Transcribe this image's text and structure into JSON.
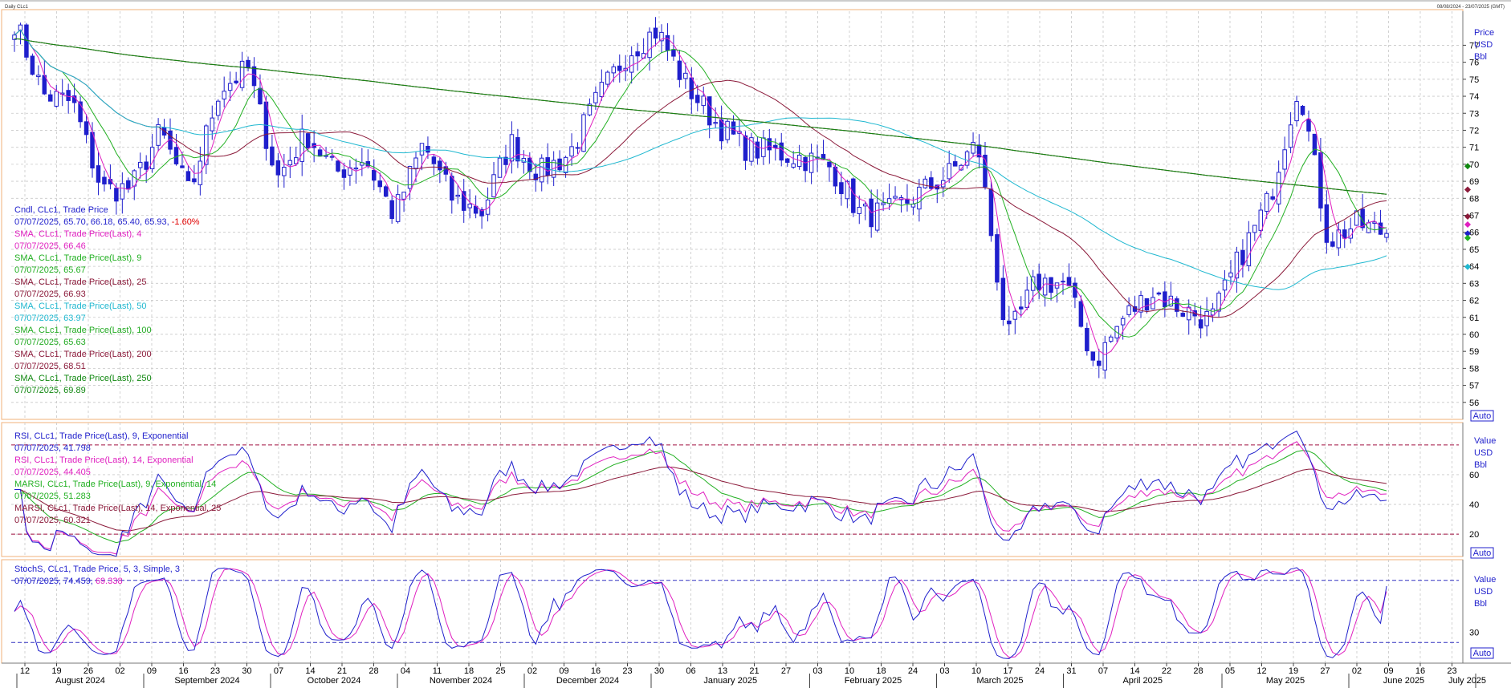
{
  "header": {
    "left_title": "Daily CLc1",
    "right_range": "08/08/2024 - 23/07/2025 (GMT)"
  },
  "legend": {
    "price": [
      {
        "name": "Cndl, CLc1, Trade Price",
        "value": "07/07/2025, 65.70, 66.18, 65.40, 65.93,",
        "change": "-1.60%",
        "color": "#1f1fcc"
      },
      {
        "name": "SMA, CLc1, Trade Price(Last), 4",
        "value": "07/07/2025, 66.46",
        "color": "#e020c0"
      },
      {
        "name": "SMA, CLc1, Trade Price(Last), 9",
        "value": "07/07/2025, 65.67",
        "color": "#22b022"
      },
      {
        "name": "SMA, CLc1, Trade Price(Last), 25",
        "value": "07/07/2025, 66.93",
        "color": "#8b1a3a"
      },
      {
        "name": "SMA, CLc1, Trade Price(Last), 50",
        "value": "07/07/2025, 63.97",
        "color": "#20b8d0"
      },
      {
        "name": "SMA, CLc1, Trade Price(Last), 100",
        "value": "07/07/2025, 65.63",
        "color": "#22aa22"
      },
      {
        "name": "SMA, CLc1, Trade Price(Last), 200",
        "value": "07/07/2025, 68.51",
        "color": "#8b1a3a"
      },
      {
        "name": "SMA, CLc1, Trade Price(Last), 250",
        "value": "07/07/2025, 69.89",
        "color": "#118811"
      }
    ],
    "rsi": [
      {
        "name": "RSI, CLc1, Trade Price(Last), 9, Exponential",
        "value": "07/07/2025, 41.798",
        "color": "#1f1fcc"
      },
      {
        "name": "RSI, CLc1, Trade Price(Last), 14, Exponential",
        "value": "07/07/2025, 44.405",
        "color": "#e020c0"
      },
      {
        "name": "MARSI, CLc1, Trade Price(Last), 9, Exponential, 14",
        "value": "07/07/2025, 51.283",
        "color": "#22b022"
      },
      {
        "name": "MARSI, CLc1, Trade Price(Last), 14, Exponential, 25",
        "value": "07/07/2025, 60.321",
        "color": "#8b1a3a"
      }
    ],
    "stoch": [
      {
        "name": "StochS, CLc1, Trade Price, 5, 3, Simple, 3",
        "value_a": "07/07/2025, 74.459,",
        "value_b": "69.338",
        "color_a": "#1f1fcc",
        "color_b": "#e020c0"
      }
    ]
  },
  "axis": {
    "price_unit": [
      "Price",
      "USD",
      "Bbl"
    ],
    "value_unit_rsi": [
      "Value",
      "USD",
      "Bbl"
    ],
    "value_unit_stoch": [
      "Value",
      "USD",
      "Bbl"
    ],
    "auto_label": "Auto",
    "price_ticks": [
      "56",
      "57",
      "58",
      "59",
      "60",
      "61",
      "62",
      "63",
      "64",
      "65",
      "66",
      "67",
      "68",
      "69",
      "70",
      "71",
      "72",
      "73",
      "74",
      "75",
      "76",
      "77"
    ],
    "rsi_ticks": [
      "20",
      "40",
      "60"
    ],
    "stoch_ticks": [
      "30"
    ],
    "x_day_ticks": [
      "12",
      "19",
      "26",
      "02",
      "09",
      "16",
      "23",
      "30",
      "07",
      "14",
      "21",
      "28",
      "04",
      "11",
      "18",
      "25",
      "02",
      "09",
      "16",
      "23",
      "30",
      "06",
      "13",
      "21",
      "27",
      "03",
      "10",
      "18",
      "24",
      "03",
      "10",
      "17",
      "24",
      "31",
      "07",
      "14",
      "22",
      "28",
      "05",
      "12",
      "19",
      "27",
      "02",
      "09",
      "16",
      "23",
      "30",
      "07",
      "14",
      "21"
    ],
    "x_month_labels": [
      "August 2024",
      "September 2024",
      "October 2024",
      "November 2024",
      "December 2024",
      "January 2025",
      "February 2025",
      "March 2025",
      "April 2025",
      "May 2025",
      "June 2025",
      "July 2025"
    ]
  },
  "colors": {
    "candle": "#1f1fcc",
    "pane_border": "#f0b27a",
    "grid": "#c8c8c8",
    "rsi_band": "#a01040",
    "stoch_band": "#3030c0"
  },
  "chart_data": [
    {
      "type": "candlestick",
      "ylim": [
        55,
        79
      ],
      "x_range": [
        "2024-08-08",
        "2025-07-23"
      ],
      "last_candle": {
        "date": "07/07/2025",
        "open": 65.7,
        "high": 66.18,
        "low": 65.4,
        "close": 65.93
      },
      "close_approx": [
        {
          "date": "2024-08-12",
          "value": 78.4
        },
        {
          "date": "2024-08-19",
          "value": 74.1
        },
        {
          "date": "2024-08-26",
          "value": 73.6
        },
        {
          "date": "2024-09-02",
          "value": 68.5
        },
        {
          "date": "2024-09-09",
          "value": 68.6
        },
        {
          "date": "2024-09-16",
          "value": 71.9
        },
        {
          "date": "2024-09-23",
          "value": 68.2
        },
        {
          "date": "2024-09-30",
          "value": 74.4
        },
        {
          "date": "2024-10-07",
          "value": 75.6
        },
        {
          "date": "2024-10-14",
          "value": 69.2
        },
        {
          "date": "2024-10-21",
          "value": 71.8
        },
        {
          "date": "2024-10-28",
          "value": 69.5
        },
        {
          "date": "2024-11-04",
          "value": 70.4
        },
        {
          "date": "2024-11-11",
          "value": 67.0
        },
        {
          "date": "2024-11-18",
          "value": 71.2
        },
        {
          "date": "2024-11-25",
          "value": 68.0
        },
        {
          "date": "2024-12-02",
          "value": 67.2
        },
        {
          "date": "2024-12-09",
          "value": 71.3
        },
        {
          "date": "2024-12-16",
          "value": 69.5
        },
        {
          "date": "2024-12-23",
          "value": 70.6
        },
        {
          "date": "2024-12-30",
          "value": 73.9
        },
        {
          "date": "2025-01-06",
          "value": 76.6
        },
        {
          "date": "2025-01-13",
          "value": 77.9
        },
        {
          "date": "2025-01-21",
          "value": 74.7
        },
        {
          "date": "2025-01-27",
          "value": 72.5
        },
        {
          "date": "2025-02-03",
          "value": 71.0
        },
        {
          "date": "2025-02-10",
          "value": 70.7
        },
        {
          "date": "2025-02-18",
          "value": 70.4
        },
        {
          "date": "2025-02-24",
          "value": 69.8
        },
        {
          "date": "2025-03-03",
          "value": 67.0
        },
        {
          "date": "2025-03-10",
          "value": 67.2
        },
        {
          "date": "2025-03-17",
          "value": 68.3
        },
        {
          "date": "2025-03-24",
          "value": 69.4
        },
        {
          "date": "2025-03-31",
          "value": 71.2
        },
        {
          "date": "2025-04-07",
          "value": 59.6
        },
        {
          "date": "2025-04-14",
          "value": 63.1
        },
        {
          "date": "2025-04-22",
          "value": 63.0
        },
        {
          "date": "2025-04-28",
          "value": 58.3
        },
        {
          "date": "2025-05-05",
          "value": 61.0
        },
        {
          "date": "2025-05-12",
          "value": 62.5
        },
        {
          "date": "2025-05-19",
          "value": 61.5
        },
        {
          "date": "2025-05-27",
          "value": 60.8
        },
        {
          "date": "2025-06-02",
          "value": 64.6
        },
        {
          "date": "2025-06-09",
          "value": 68.0
        },
        {
          "date": "2025-06-16",
          "value": 74.9
        },
        {
          "date": "2025-06-23",
          "value": 65.5
        },
        {
          "date": "2025-06-30",
          "value": 66.5
        },
        {
          "date": "2025-07-07",
          "value": 65.93
        }
      ],
      "sma_last": {
        "4": 66.46,
        "9": 65.67,
        "25": 66.93,
        "50": 63.97,
        "100": 65.63,
        "200": 68.51,
        "250": 69.89
      }
    },
    {
      "type": "line",
      "ylim": [
        5,
        95
      ],
      "bands": [
        20,
        80
      ],
      "last_values": {
        "RSI 9": 41.798,
        "RSI 14": 44.405,
        "MARSI 9,14": 51.283,
        "MARSI 14,25": 60.321
      }
    },
    {
      "type": "line",
      "ylim": [
        0,
        100
      ],
      "bands": [
        20,
        80
      ],
      "last_values": {
        "%K": 74.459,
        "%D": 69.338
      }
    }
  ]
}
